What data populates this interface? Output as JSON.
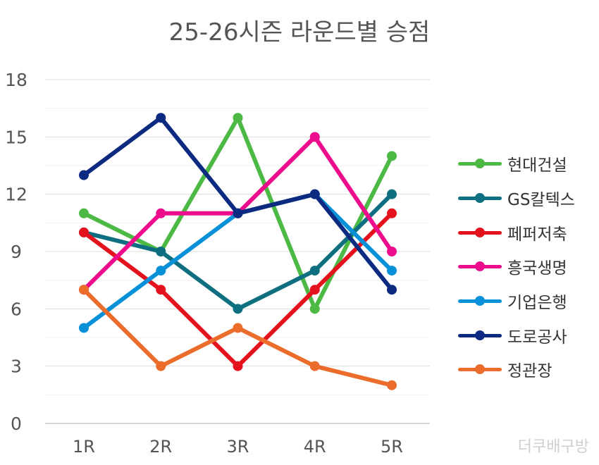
{
  "chart_data": {
    "type": "line",
    "title": "25-26시즌 라운드별 승점",
    "categories": [
      "1R",
      "2R",
      "3R",
      "4R",
      "5R"
    ],
    "y_ticks": [
      "0",
      "3",
      "6",
      "9",
      "12",
      "15",
      "18"
    ],
    "ylim": [
      0,
      18
    ],
    "grid": true,
    "legend_position": "right",
    "series": [
      {
        "name": "현대건설",
        "color": "#4cb944",
        "values": [
          11,
          9,
          16,
          6,
          14
        ]
      },
      {
        "name": "GS칼텍스",
        "color": "#0e6f80",
        "values": [
          10,
          9,
          6,
          8,
          12
        ]
      },
      {
        "name": "페퍼저축",
        "color": "#e3121c",
        "values": [
          10,
          7,
          3,
          7,
          11
        ]
      },
      {
        "name": "흥국생명",
        "color": "#ec0c8c",
        "values": [
          7,
          11,
          11,
          15,
          9
        ]
      },
      {
        "name": "기업은행",
        "color": "#0891d8",
        "values": [
          5,
          8,
          11,
          12,
          8
        ]
      },
      {
        "name": "도로공사",
        "color": "#0c2a80",
        "values": [
          13,
          16,
          11,
          12,
          7
        ]
      },
      {
        "name": "정관장",
        "color": "#ec6c2c",
        "values": [
          7,
          3,
          5,
          3,
          2
        ]
      }
    ]
  },
  "watermark": "더쿠배구방"
}
